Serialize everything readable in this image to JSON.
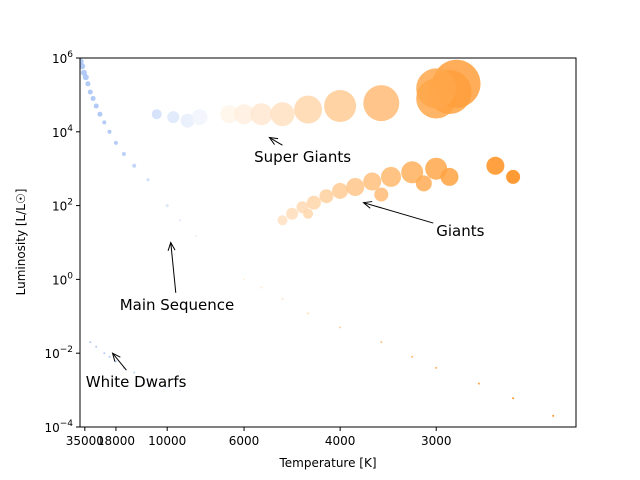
{
  "chart_data": {
    "type": "scatter",
    "title": "",
    "xlabel": "Temperature [K]",
    "ylabel": "Luminosity [L/L☉]",
    "x_scale": "reciprocal",
    "y_scale": "log",
    "xlim": [
      41000,
      2200
    ],
    "ylim": [
      0.0001,
      1000000
    ],
    "x_ticks": [
      {
        "value": 35000,
        "label": "35000"
      },
      {
        "value": 18000,
        "label": "18000"
      },
      {
        "value": 10000,
        "label": "10000"
      },
      {
        "value": 6000,
        "label": "6000"
      },
      {
        "value": 4000,
        "label": "4000"
      },
      {
        "value": 3000,
        "label": "3000"
      }
    ],
    "y_ticks": [
      {
        "value": 0.0001,
        "base": "10",
        "exp": "−4"
      },
      {
        "value": 0.01,
        "base": "10",
        "exp": "−2"
      },
      {
        "value": 1,
        "base": "10",
        "exp": "0"
      },
      {
        "value": 100,
        "base": "10",
        "exp": "2"
      },
      {
        "value": 10000,
        "base": "10",
        "exp": "4"
      },
      {
        "value": 1000000,
        "base": "10",
        "exp": "6"
      }
    ],
    "colormap": {
      "hot": "#a9c4f5",
      "mid": "#ffffff",
      "cool": "#ff8a10",
      "pivot_temperature": 7000
    },
    "grid": false,
    "legend": "none",
    "series": [
      {
        "points": [
          [
            40000,
            800000,
            3
          ],
          [
            38000,
            600000,
            3
          ],
          [
            36000,
            400000,
            3
          ],
          [
            34000,
            300000,
            3
          ],
          [
            32000,
            200000,
            2.5
          ],
          [
            30000,
            120000,
            2.5
          ],
          [
            28000,
            80000,
            2.5
          ],
          [
            26000,
            50000,
            2.5
          ],
          [
            24000,
            30000,
            2.5
          ],
          [
            22000,
            18000,
            2
          ],
          [
            20000,
            10000,
            2
          ],
          [
            18000,
            5000,
            2
          ],
          [
            16000,
            2500,
            2
          ],
          [
            14000,
            1200,
            2
          ],
          [
            12000,
            500,
            1.5
          ],
          [
            10000,
            100,
            1.5
          ],
          [
            9000,
            40,
            1.2
          ],
          [
            8000,
            15,
            1.2
          ],
          [
            7000,
            4,
            1
          ],
          [
            6000,
            1,
            1
          ],
          [
            5500,
            0.6,
            1
          ],
          [
            5000,
            0.3,
            1
          ],
          [
            4500,
            0.12,
            1
          ],
          [
            4000,
            0.05,
            1
          ],
          [
            3500,
            0.02,
            1
          ],
          [
            3200,
            0.008,
            1
          ],
          [
            3000,
            0.004,
            1
          ],
          [
            2700,
            0.0015,
            1
          ],
          [
            2500,
            0.0006,
            1
          ],
          [
            2300,
            0.0002,
            1
          ]
        ]
      },
      {
        "points": [
          [
            30000,
            0.02,
            1
          ],
          [
            26000,
            0.015,
            1
          ],
          [
            22000,
            0.01,
            1
          ],
          [
            20000,
            0.008,
            1
          ],
          [
            18000,
            0.006,
            1
          ],
          [
            16000,
            0.004,
            1
          ],
          [
            14000,
            0.003,
            1
          ],
          [
            12000,
            0.002,
            1
          ],
          [
            10000,
            0.0012,
            1
          ],
          [
            9000,
            0.001,
            1
          ]
        ]
      },
      {
        "points": [
          [
            5000,
            40,
            5
          ],
          [
            4800,
            60,
            6
          ],
          [
            4600,
            90,
            6
          ],
          [
            4400,
            120,
            7
          ],
          [
            4200,
            180,
            7
          ],
          [
            4000,
            250,
            8
          ],
          [
            3800,
            320,
            9
          ],
          [
            3600,
            450,
            9
          ],
          [
            3400,
            600,
            10
          ],
          [
            3200,
            800,
            11
          ],
          [
            3000,
            1000,
            11
          ],
          [
            2900,
            600,
            9
          ],
          [
            3100,
            400,
            8
          ],
          [
            3500,
            200,
            7
          ],
          [
            4500,
            60,
            5
          ],
          [
            2600,
            1200,
            9
          ],
          [
            2500,
            600,
            7
          ]
        ]
      },
      {
        "points": [
          [
            11000,
            30000,
            5
          ],
          [
            9500,
            25000,
            6
          ],
          [
            8500,
            20000,
            7
          ],
          [
            7800,
            25000,
            8
          ],
          [
            7000,
            30000,
            8
          ],
          [
            6500,
            30000,
            9
          ],
          [
            6000,
            30000,
            10
          ],
          [
            5500,
            30000,
            11
          ],
          [
            5000,
            30000,
            12
          ],
          [
            4500,
            40000,
            14
          ],
          [
            4000,
            50000,
            16
          ],
          [
            3500,
            60000,
            18
          ],
          [
            3000,
            80000,
            20
          ],
          [
            2900,
            120000,
            22
          ],
          [
            2850,
            200000,
            24
          ],
          [
            3000,
            150000,
            20
          ]
        ]
      }
    ],
    "annotations": [
      {
        "text": "Super Giants",
        "text_x": 5700,
        "text_y": 1500,
        "arrow_to": [
          5300,
          7000
        ]
      },
      {
        "text": "Giants",
        "text_x": 3000,
        "text_y": 15,
        "arrow_to": [
          3700,
          120
        ]
      },
      {
        "text": "Main Sequence",
        "text_x": 17000,
        "text_y": 0.15,
        "arrow_to": [
          9700,
          10
        ]
      },
      {
        "text": "White Dwarfs",
        "text_x": 34000,
        "text_y": 0.0012,
        "arrow_to": [
          19000,
          0.01
        ]
      }
    ]
  }
}
